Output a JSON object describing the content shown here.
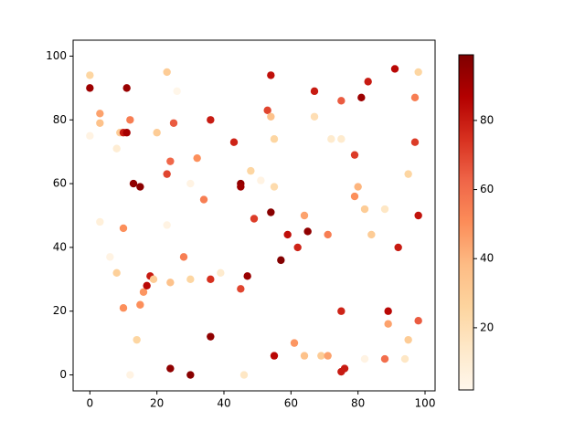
{
  "chart_data": {
    "type": "scatter",
    "x": [
      0,
      0,
      0,
      3,
      3,
      3,
      6,
      8,
      8,
      9,
      10,
      11,
      11,
      10,
      10,
      12,
      12,
      13,
      14,
      15,
      15,
      16,
      17,
      18,
      19,
      20,
      23,
      23,
      23,
      24,
      24,
      24,
      25,
      26,
      28,
      30,
      30,
      30,
      32,
      34,
      36,
      36,
      36,
      39,
      43,
      45,
      45,
      45,
      46,
      47,
      48,
      49,
      51,
      53,
      54,
      54,
      54,
      55,
      55,
      55,
      57,
      59,
      61,
      62,
      64,
      64,
      65,
      67,
      67,
      69,
      71,
      71,
      72,
      75,
      75,
      75,
      75,
      76,
      79,
      79,
      80,
      81,
      82,
      82,
      83,
      84,
      88,
      88,
      89,
      89,
      91,
      92,
      94,
      95,
      95,
      97,
      97,
      98,
      98,
      98
    ],
    "y": [
      94,
      90,
      75,
      82,
      79,
      48,
      37,
      32,
      71,
      76,
      76,
      76,
      90,
      46,
      21,
      80,
      0,
      60,
      11,
      59,
      22,
      26,
      28,
      31,
      30,
      76,
      95,
      63,
      47,
      67,
      29,
      2,
      79,
      89,
      37,
      60,
      30,
      0,
      68,
      55,
      80,
      30,
      12,
      32,
      73,
      60,
      59,
      27,
      0,
      31,
      64,
      49,
      61,
      83,
      81,
      94,
      51,
      74,
      59,
      6,
      36,
      44,
      10,
      40,
      50,
      6,
      45,
      89,
      81,
      6,
      6,
      44,
      74,
      74,
      86,
      20,
      1,
      2,
      69,
      56,
      59,
      87,
      52,
      5,
      92,
      44,
      52,
      5,
      20,
      16,
      96,
      40,
      5,
      63,
      11,
      87,
      73,
      95,
      17,
      50
    ],
    "c": [
      25,
      92,
      5,
      45,
      35,
      8,
      5,
      28,
      10,
      30,
      80,
      90,
      93,
      50,
      50,
      55,
      5,
      95,
      25,
      96,
      50,
      48,
      85,
      80,
      30,
      30,
      30,
      70,
      5,
      62,
      35,
      95,
      65,
      3,
      55,
      5,
      25,
      97,
      50,
      55,
      80,
      75,
      95,
      12,
      78,
      95,
      92,
      70,
      15,
      93,
      25,
      72,
      5,
      70,
      35,
      83,
      97,
      25,
      22,
      85,
      98,
      83,
      48,
      78,
      45,
      35,
      95,
      80,
      20,
      30,
      45,
      55,
      12,
      12,
      65,
      78,
      80,
      80,
      72,
      50,
      40,
      92,
      30,
      5,
      80,
      30,
      15,
      60,
      85,
      45,
      85,
      80,
      15,
      25,
      30,
      55,
      72,
      25,
      65,
      82
    ],
    "colormap": [
      "#fff7ec",
      "#fee8c8",
      "#fdd49e",
      "#fdbb84",
      "#fc8d59",
      "#ef6548",
      "#d7301f",
      "#b30000",
      "#7f0000"
    ],
    "clim": [
      2,
      99
    ],
    "cticks": [
      20,
      40,
      60,
      80
    ],
    "xlim": [
      -5,
      103
    ],
    "xticks": [
      0,
      20,
      40,
      60,
      80,
      100
    ],
    "ylim": [
      -5,
      105
    ],
    "yticks": [
      0,
      20,
      40,
      60,
      80,
      100
    ]
  }
}
